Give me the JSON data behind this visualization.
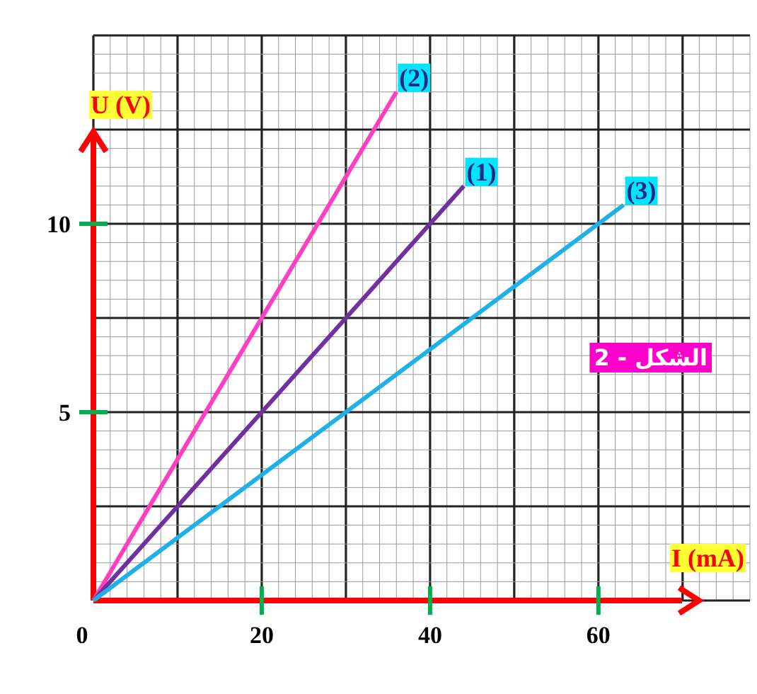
{
  "chart_data": {
    "type": "line",
    "xlabel": "I (mA)",
    "ylabel": "U (V)",
    "annotations": [
      "الشكل - 2"
    ],
    "xlim": [
      0,
      78
    ],
    "ylim": [
      0,
      15
    ],
    "xticks": [
      0,
      20,
      40,
      60
    ],
    "yticks": [
      {
        "value": 0,
        "label": null
      },
      5,
      10
    ],
    "grid": true,
    "marker": "none",
    "line_style": "solid",
    "series": [
      {
        "name": "(2)",
        "color": "#ff3fbf",
        "x": [
          0,
          36
        ],
        "values": [
          0,
          13.5
        ]
      },
      {
        "name": "(1)",
        "color": "#7030a0",
        "x": [
          0,
          44
        ],
        "values": [
          0,
          11
        ]
      },
      {
        "name": "(3)",
        "color": "#1fb0e8",
        "x": [
          0,
          63
        ],
        "values": [
          0,
          10.5
        ]
      }
    ]
  }
}
